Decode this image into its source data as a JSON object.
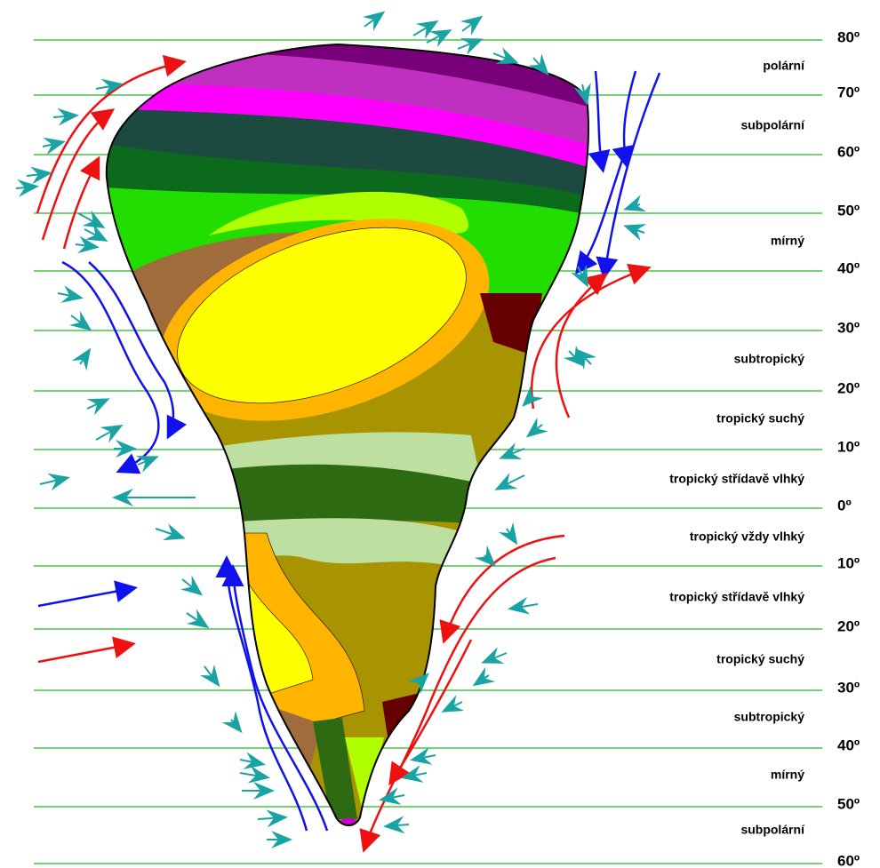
{
  "latitudes": [
    "80º",
    "70º",
    "60º",
    "50º",
    "40º",
    "30º",
    "20º",
    "10º",
    "0º",
    "10º",
    "20º",
    "30º",
    "40º",
    "50º",
    "60º"
  ],
  "zones": [
    "polární",
    "subpolární",
    "mírný",
    "subtropický",
    "tropický suchý",
    "tropický střídavě vlhký",
    "tropický vždy vlhký",
    "tropický střídavě vlhký",
    "tropický suchý",
    "subtropický",
    "mírný",
    "subpolární"
  ]
}
